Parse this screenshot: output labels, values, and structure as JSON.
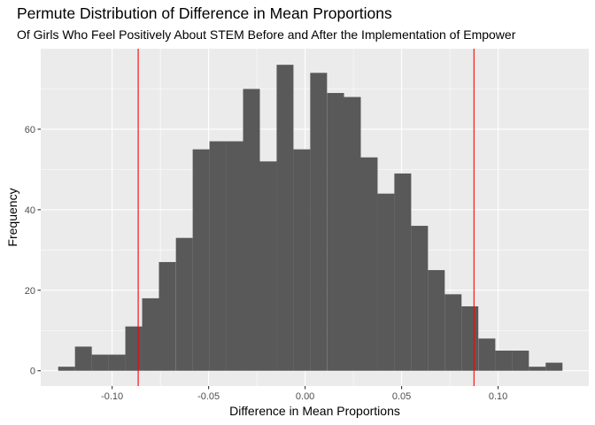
{
  "chart_data": {
    "type": "bar",
    "title": "Permute Distribution of Difference in Mean Proportions",
    "subtitle": "Of Girls Who Feel Positively About STEM Before and After the Implementation of Empower",
    "xlabel": "Difference in Mean Proportions",
    "ylabel": "Frequency",
    "xlim": [
      -0.137,
      0.147
    ],
    "ylim": [
      -3.8,
      80
    ],
    "x_ticks": [
      -0.1,
      -0.05,
      0.0,
      0.05,
      0.1
    ],
    "x_tick_labels": [
      "-0.10",
      "-0.05",
      "0.00",
      "0.05",
      "0.10"
    ],
    "y_ticks": [
      0,
      20,
      40,
      60
    ],
    "y_tick_labels": [
      "0",
      "20",
      "40",
      "60"
    ],
    "bin_width": 0.00871,
    "bins": [
      {
        "x": -0.1236,
        "count": 1
      },
      {
        "x": -0.1149,
        "count": 6
      },
      {
        "x": -0.1062,
        "count": 4
      },
      {
        "x": -0.0975,
        "count": 4
      },
      {
        "x": -0.0888,
        "count": 11
      },
      {
        "x": -0.0801,
        "count": 18
      },
      {
        "x": -0.0714,
        "count": 27
      },
      {
        "x": -0.0626,
        "count": 33
      },
      {
        "x": -0.0539,
        "count": 55
      },
      {
        "x": -0.0452,
        "count": 57
      },
      {
        "x": -0.0365,
        "count": 57
      },
      {
        "x": -0.0278,
        "count": 70
      },
      {
        "x": -0.0191,
        "count": 52
      },
      {
        "x": -0.0104,
        "count": 76
      },
      {
        "x": -0.0017,
        "count": 55
      },
      {
        "x": 0.007,
        "count": 74
      },
      {
        "x": 0.0158,
        "count": 69
      },
      {
        "x": 0.0245,
        "count": 68
      },
      {
        "x": 0.0332,
        "count": 53
      },
      {
        "x": 0.0419,
        "count": 44
      },
      {
        "x": 0.0506,
        "count": 49
      },
      {
        "x": 0.0593,
        "count": 36
      },
      {
        "x": 0.068,
        "count": 25
      },
      {
        "x": 0.0767,
        "count": 19
      },
      {
        "x": 0.0854,
        "count": 16
      },
      {
        "x": 0.0942,
        "count": 8
      },
      {
        "x": 0.1029,
        "count": 5
      },
      {
        "x": 0.1116,
        "count": 5
      },
      {
        "x": 0.1203,
        "count": 1
      },
      {
        "x": 0.129,
        "count": 2
      }
    ],
    "vlines": [
      -0.0865,
      0.0875
    ],
    "colors": {
      "panel": "#ebebeb",
      "grid_major": "#ffffff",
      "bar": "#595959",
      "vline": "#ff0000",
      "tick": "#333333"
    },
    "grid": true,
    "legend": "none"
  }
}
